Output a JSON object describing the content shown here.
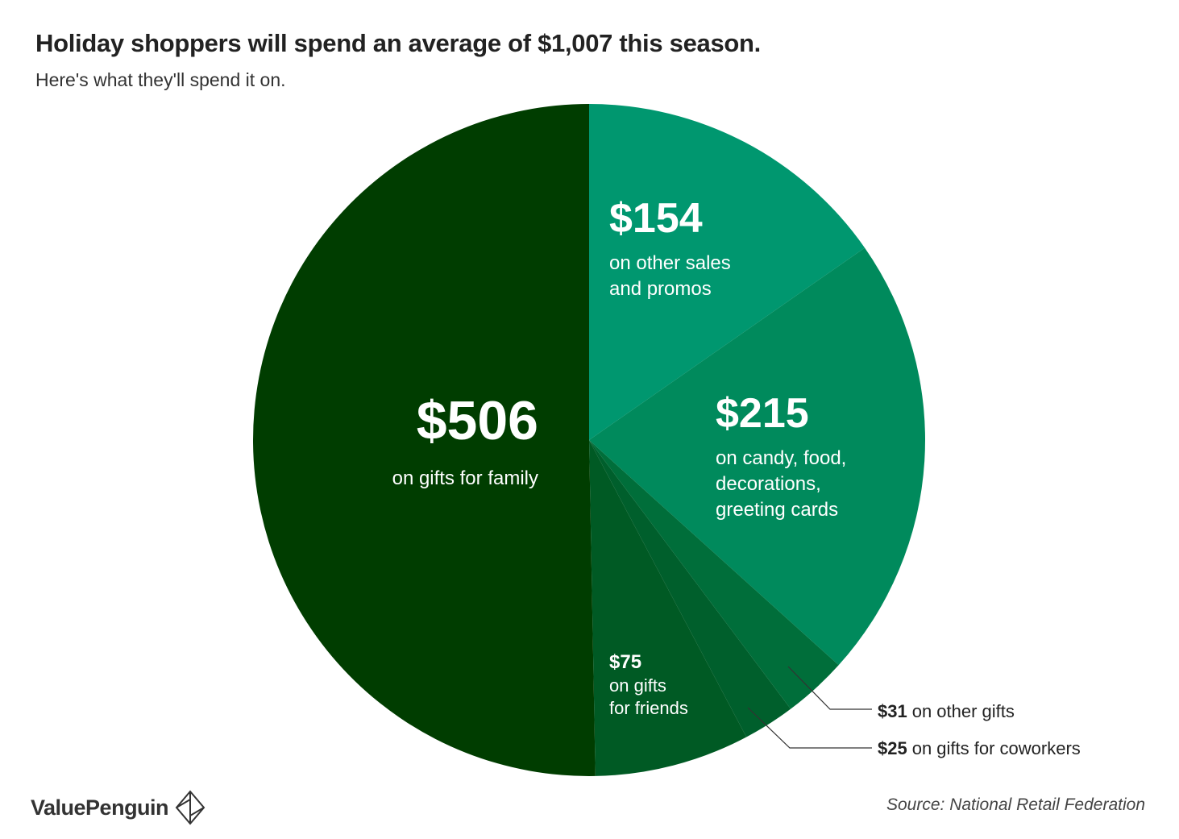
{
  "header": {
    "title": "Holiday shoppers will spend an average of $1,007 this season.",
    "subtitle": "Here's what they'll spend it on."
  },
  "chart_data": {
    "type": "pie",
    "start_angle": "top, clockwise",
    "slices": [
      {
        "value": 154,
        "label": "$154",
        "desc": [
          "on other sales",
          "and promos"
        ],
        "color": "#00976f"
      },
      {
        "value": 215,
        "label": "$215",
        "desc": [
          "on candy, food,",
          "decorations,",
          "greeting cards"
        ],
        "color": "#008a5c"
      },
      {
        "value": 31,
        "label": "$31",
        "desc": [
          "on other gifts"
        ],
        "color": "#006e3a"
      },
      {
        "value": 25,
        "label": "$25",
        "desc": [
          "on gifts for coworkers"
        ],
        "color": "#005f2c"
      },
      {
        "value": 75,
        "label": "$75",
        "desc": [
          "on gifts",
          "for friends"
        ],
        "color": "#005a24"
      },
      {
        "value": 506,
        "label": "$506",
        "desc": [
          "on gifts for family"
        ],
        "color": "#003d00"
      }
    ]
  },
  "footer": {
    "source": "Source: National Retail Federation",
    "brand": "ValuePenguin"
  }
}
